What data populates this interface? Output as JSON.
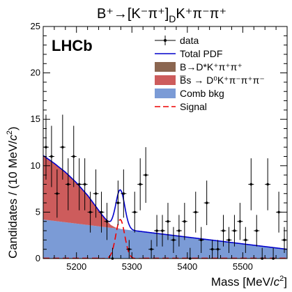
{
  "chart_data": {
    "type": "histogram-fit",
    "title": "B⁺→[K⁻π⁺]_D K⁺π⁻π⁺",
    "title_parts": {
      "main": "B⁺→[K⁻π⁺]",
      "sub": "D",
      "tail": "K⁺π⁻π⁺"
    },
    "watermark": "LHCb",
    "xlabel": "Mass [MeV/c²]",
    "ylabel": "Candidates / (10 MeV/c²)",
    "xlim": [
      5140,
      5580
    ],
    "ylim": [
      0,
      25
    ],
    "x_ticks": [
      5200,
      5300,
      5400,
      5500
    ],
    "x_tick_labels": [
      "5200",
      "5300",
      "5400",
      "5500"
    ],
    "y_ticks": [
      0,
      5,
      10,
      15,
      20,
      25
    ],
    "y_tick_labels": [
      "0",
      "5",
      "10",
      "15",
      "20",
      "25"
    ],
    "legend_position": "top-right",
    "legend": [
      {
        "key": "data",
        "label": "data",
        "style": "marker",
        "color": "#000000"
      },
      {
        "key": "total",
        "label": "Total PDF",
        "style": "line",
        "color": "#0000cc"
      },
      {
        "key": "bdstar",
        "label": "B→D*K⁺π⁺π⁺",
        "style": "box",
        "color": "#8b6650"
      },
      {
        "key": "bs",
        "label": "B̅s → D⁰K⁺π⁻π⁺π⁻",
        "style": "box",
        "color": "#cd5c5c"
      },
      {
        "key": "comb",
        "label": "Comb bkg",
        "style": "box",
        "color": "#7b9bd6"
      },
      {
        "key": "signal",
        "label": "Signal",
        "style": "dashed",
        "color": "#ee0000"
      }
    ],
    "data_points": {
      "x": [
        5145,
        5155,
        5165,
        5175,
        5185,
        5195,
        5205,
        5215,
        5225,
        5235,
        5245,
        5255,
        5265,
        5275,
        5285,
        5295,
        5305,
        5315,
        5325,
        5335,
        5345,
        5355,
        5365,
        5375,
        5385,
        5395,
        5405,
        5415,
        5425,
        5435,
        5445,
        5455,
        5465,
        5475,
        5485,
        5495,
        5505,
        5515,
        5525,
        5535,
        5545,
        5555,
        5565,
        5575
      ],
      "y": [
        12,
        11,
        7,
        12,
        8,
        11,
        8,
        8,
        5,
        7,
        5,
        4,
        0,
        6,
        7,
        1,
        5,
        8,
        9,
        1,
        3,
        3,
        4,
        2,
        3,
        4,
        0,
        5,
        2,
        6,
        1,
        1,
        3,
        2,
        3,
        4,
        2,
        8,
        3,
        0,
        8,
        0,
        5,
        2
      ],
      "err": [
        3.5,
        3.3,
        2.6,
        3.5,
        2.8,
        3.3,
        2.8,
        2.8,
        2.2,
        2.6,
        2.2,
        2.0,
        1.15,
        2.4,
        2.6,
        1.0,
        2.2,
        2.8,
        3.0,
        1.0,
        1.7,
        1.7,
        2.0,
        1.4,
        1.7,
        2.0,
        1.15,
        2.2,
        1.4,
        2.4,
        1.0,
        1.0,
        1.7,
        1.4,
        1.7,
        2.0,
        1.4,
        2.8,
        1.7,
        1.15,
        2.8,
        1.15,
        2.2,
        1.4
      ]
    },
    "comb_bkg": {
      "x": [
        5140,
        5580
      ],
      "y": [
        4.2,
        1.0
      ]
    },
    "bs_bkg": {
      "x": [
        5140,
        5160,
        5180,
        5200,
        5220,
        5235,
        5245,
        5255,
        5262,
        5270,
        5280
      ],
      "y": [
        6.9,
        6.2,
        5.4,
        4.4,
        3.2,
        2.1,
        1.35,
        0.7,
        0.3,
        0.1,
        0
      ]
    },
    "signal": {
      "mean": 5279,
      "sigma": 8,
      "peak": 4.2
    },
    "total_pdf_color": "#0000cc",
    "signal_color": "#ee0000"
  }
}
